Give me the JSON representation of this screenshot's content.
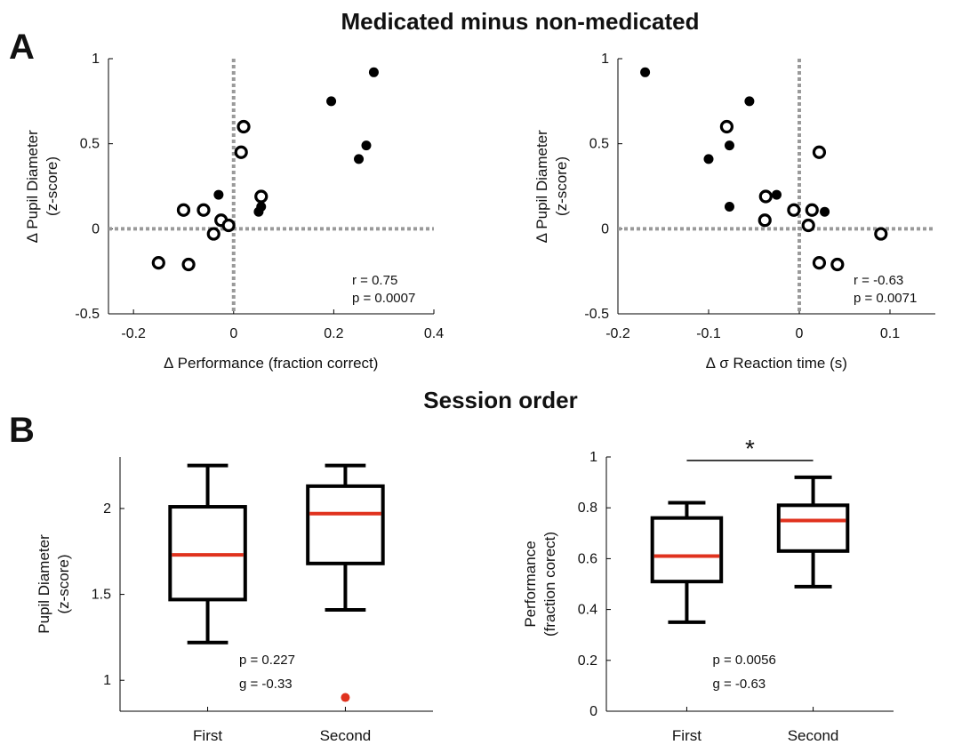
{
  "titles": {
    "top": "Medicated minus non-medicated",
    "bottom": "Session order"
  },
  "panels": {
    "a": "A",
    "b": "B"
  },
  "chart_data": [
    {
      "type": "scatter",
      "id": "a-left",
      "xlabel": "∆ Performance (fraction correct)",
      "ylabel": [
        "∆ Pupil Diameter",
        "(z-score)"
      ],
      "xlim": [
        -0.25,
        0.4
      ],
      "ylim": [
        -0.5,
        1
      ],
      "xticks": [
        "-0.2",
        "0",
        "0.2",
        "0.4"
      ],
      "xtick_values": [
        -0.2,
        0,
        0.2,
        0.4
      ],
      "yticks": [
        "-0.5",
        "0",
        "0.5",
        "1"
      ],
      "ytick_values": [
        -0.5,
        0,
        0.5,
        1
      ],
      "reference_lines": {
        "x": 0,
        "y": 0
      },
      "series": [
        {
          "marker": "filled",
          "points": [
            [
              0.28,
              0.92
            ],
            [
              0.195,
              0.75
            ],
            [
              0.265,
              0.49
            ],
            [
              0.25,
              0.41
            ],
            [
              -0.03,
              0.2
            ],
            [
              0.055,
              0.13
            ],
            [
              0.05,
              0.1
            ]
          ]
        },
        {
          "marker": "open",
          "points": [
            [
              0.02,
              0.6
            ],
            [
              0.015,
              0.45
            ],
            [
              0.055,
              0.19
            ],
            [
              -0.1,
              0.11
            ],
            [
              -0.06,
              0.11
            ],
            [
              -0.025,
              0.05
            ],
            [
              -0.01,
              0.02
            ],
            [
              -0.04,
              -0.03
            ],
            [
              -0.15,
              -0.2
            ],
            [
              -0.09,
              -0.21
            ]
          ]
        }
      ],
      "stats": [
        "r = 0.75",
        "p = 0.0007"
      ]
    },
    {
      "type": "scatter",
      "id": "a-right",
      "xlabel": "∆ σ Reaction time (s)",
      "ylabel": [
        "∆ Pupil Diameter",
        "(z-score)"
      ],
      "xlim": [
        -0.2,
        0.15
      ],
      "ylim": [
        -0.5,
        1
      ],
      "xticks": [
        "-0.2",
        "-0.1",
        "0",
        "0.1"
      ],
      "xtick_values": [
        -0.2,
        -0.1,
        0,
        0.1
      ],
      "yticks": [
        "-0.5",
        "0",
        "0.5",
        "1"
      ],
      "ytick_values": [
        -0.5,
        0,
        0.5,
        1
      ],
      "reference_lines": {
        "x": 0,
        "y": 0
      },
      "series": [
        {
          "marker": "filled",
          "points": [
            [
              -0.17,
              0.92
            ],
            [
              -0.055,
              0.75
            ],
            [
              -0.077,
              0.49
            ],
            [
              -0.1,
              0.41
            ],
            [
              -0.025,
              0.2
            ],
            [
              -0.077,
              0.13
            ],
            [
              0.028,
              0.1
            ]
          ]
        },
        {
          "marker": "open",
          "points": [
            [
              -0.08,
              0.6
            ],
            [
              0.022,
              0.45
            ],
            [
              -0.037,
              0.19
            ],
            [
              -0.006,
              0.11
            ],
            [
              0.014,
              0.11
            ],
            [
              -0.038,
              0.05
            ],
            [
              0.01,
              0.02
            ],
            [
              0.09,
              -0.03
            ],
            [
              0.022,
              -0.2
            ],
            [
              0.042,
              -0.21
            ]
          ]
        }
      ],
      "stats": [
        "r = -0.63",
        "p = 0.0071"
      ]
    },
    {
      "type": "box",
      "id": "b-left",
      "ylabel": [
        "Pupil Diameter",
        "(z-score)"
      ],
      "categories": [
        "First",
        "Second"
      ],
      "ylim": [
        0.82,
        2.3
      ],
      "yticks": [
        "1",
        "1.5",
        "2"
      ],
      "ytick_values": [
        1,
        1.5,
        2
      ],
      "boxes": [
        {
          "whisker_low": 1.22,
          "q1": 1.47,
          "median": 1.73,
          "q3": 2.01,
          "whisker_high": 2.25
        },
        {
          "whisker_low": 1.41,
          "q1": 1.68,
          "median": 1.97,
          "q3": 2.13,
          "whisker_high": 2.25
        }
      ],
      "outliers": [
        {
          "category": "Second",
          "value": 0.9
        }
      ],
      "stats": [
        "p = 0.227",
        "g = -0.33"
      ]
    },
    {
      "type": "box",
      "id": "b-right",
      "ylabel": [
        "Performance",
        "(fraction corect)"
      ],
      "categories": [
        "First",
        "Second"
      ],
      "ylim": [
        0,
        1
      ],
      "yticks": [
        "0",
        "0.2",
        "0.4",
        "0.6",
        "0.8",
        "1"
      ],
      "ytick_values": [
        0,
        0.2,
        0.4,
        0.6,
        0.8,
        1
      ],
      "boxes": [
        {
          "whisker_low": 0.35,
          "q1": 0.51,
          "median": 0.61,
          "q3": 0.76,
          "whisker_high": 0.82
        },
        {
          "whisker_low": 0.49,
          "q1": 0.63,
          "median": 0.75,
          "q3": 0.81,
          "whisker_high": 0.92
        }
      ],
      "outliers": [],
      "significance": "*",
      "stats": [
        "p = 0.0056",
        "g = -0.63"
      ]
    }
  ],
  "colors": {
    "median": "#e0321e",
    "outlier": "#e0321e",
    "reference": "#9a9a9a",
    "ink": "#000000"
  }
}
